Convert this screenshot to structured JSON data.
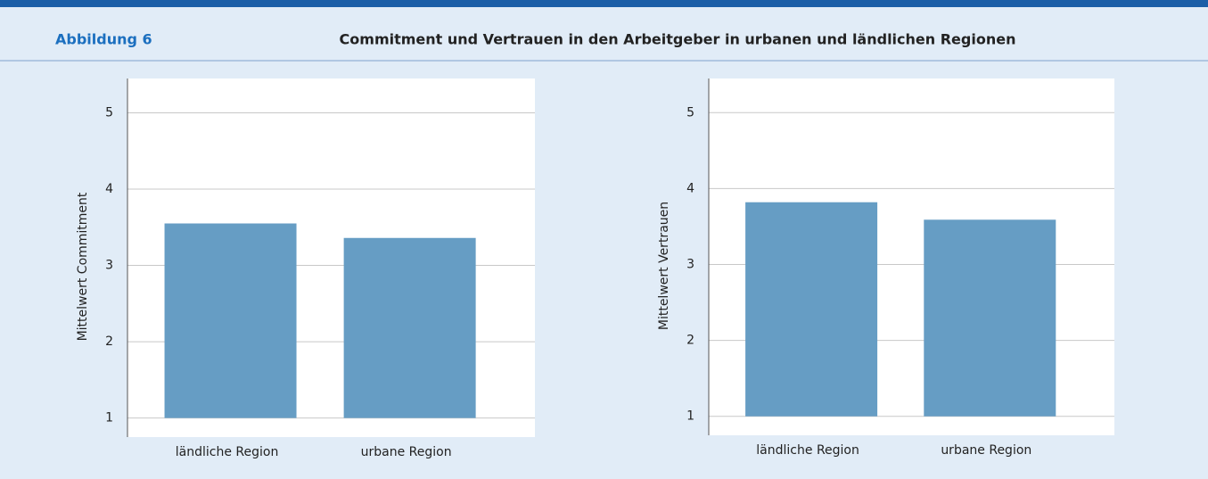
{
  "header": {
    "label": "Abbildung 6",
    "title": "Commitment und Vertrauen in den Arbeitgeber in urbanen und ländlichen Regionen"
  },
  "chart_data": [
    {
      "type": "bar",
      "ylabel": "Mittelwert Commitment",
      "categories": [
        "ländliche Region",
        "urbane Region"
      ],
      "values": [
        3.55,
        3.36
      ],
      "color": "#669dc4",
      "ylim": [
        0.75,
        5.45
      ],
      "yticks": [
        1,
        2,
        3,
        4,
        5
      ],
      "grid": true
    },
    {
      "type": "bar",
      "ylabel": "Mittelwert Vertrauen",
      "categories": [
        "ländliche Region",
        "urbane Region"
      ],
      "values": [
        3.82,
        3.59
      ],
      "color": "#669dc4",
      "ylim": [
        0.75,
        5.45
      ],
      "yticks": [
        1,
        2,
        3,
        4,
        5
      ],
      "grid": true
    }
  ]
}
